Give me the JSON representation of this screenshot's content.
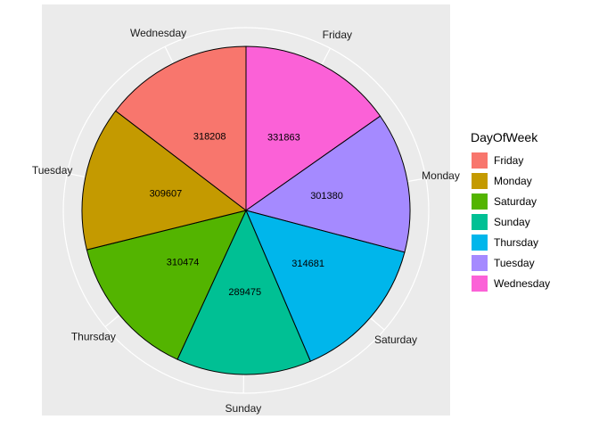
{
  "chart_data": {
    "type": "pie",
    "legend_title": "DayOfWeek",
    "legend_position": "right",
    "slices": [
      {
        "label": "Friday",
        "value": 331863,
        "fill_category": "Wednesday"
      },
      {
        "label": "Monday",
        "value": 301380,
        "fill_category": "Tuesday"
      },
      {
        "label": "Saturday",
        "value": 314681,
        "fill_category": "Thursday"
      },
      {
        "label": "Sunday",
        "value": 289475,
        "fill_category": "Sunday"
      },
      {
        "label": "Thursday",
        "value": 310474,
        "fill_category": "Saturday"
      },
      {
        "label": "Tuesday",
        "value": 309607,
        "fill_category": "Monday"
      },
      {
        "label": "Wednesday",
        "value": 318208,
        "fill_category": "Friday"
      }
    ],
    "legend": [
      {
        "label": "Friday",
        "color": "#F8766D"
      },
      {
        "label": "Monday",
        "color": "#C49A00"
      },
      {
        "label": "Saturday",
        "color": "#53B400"
      },
      {
        "label": "Sunday",
        "color": "#00C094"
      },
      {
        "label": "Thursday",
        "color": "#00B6EB"
      },
      {
        "label": "Tuesday",
        "color": "#A58AFF"
      },
      {
        "label": "Wednesday",
        "color": "#FB61D7"
      }
    ],
    "panel_background": "#EBEBEB",
    "grid_color": "#FFFFFF",
    "slice_border_color": "#000000"
  }
}
